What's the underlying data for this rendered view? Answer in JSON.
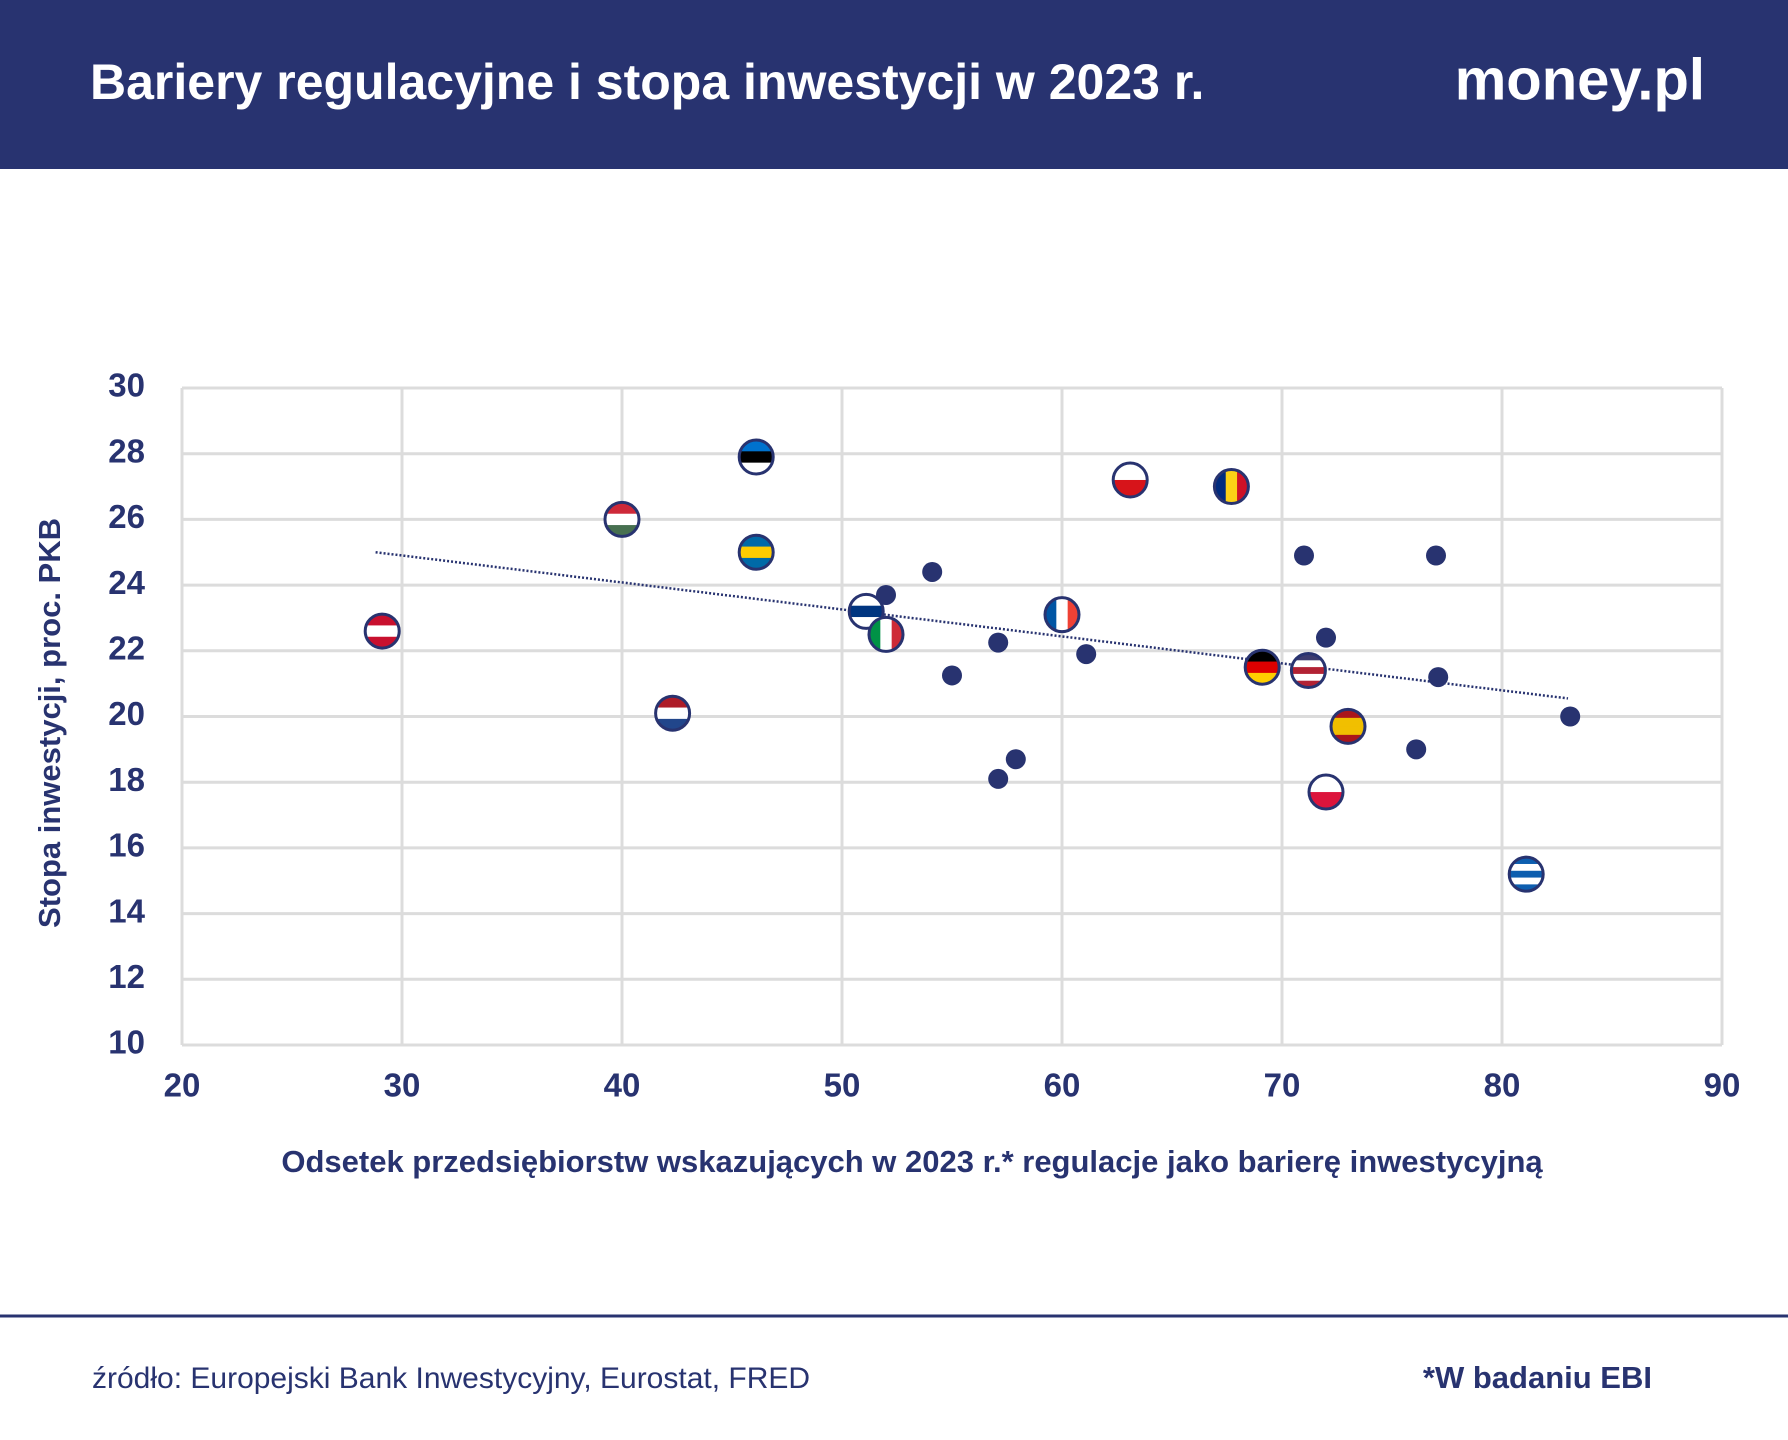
{
  "header": {
    "title": "Bariery regulacyjne i stopa inwestycji w 2023 r.",
    "logo": "money.pl"
  },
  "chart_data": {
    "type": "scatter",
    "x_label": "Odsetek przedsiębiorstw wskazujących w 2023 r.* regulacje jako barierę inwestycyjną",
    "y_label": "Stopa inwestycji, proc. PKB",
    "xlim": [
      20,
      90
    ],
    "xticks": [
      20,
      30,
      40,
      50,
      60,
      70,
      80,
      90
    ],
    "ylim": [
      10,
      30
    ],
    "yticks": [
      10,
      12,
      14,
      16,
      18,
      20,
      22,
      24,
      26,
      28,
      30
    ],
    "grid": true,
    "color": "#283370",
    "x": [
      29.1,
      40.0,
      42.3,
      46.1,
      46.1,
      51.1,
      52.0,
      52.0,
      54.1,
      55.0,
      57.1,
      57.1,
      57.9,
      60.0,
      61.1,
      63.1,
      67.7,
      71.0,
      69.1,
      71.2,
      72.0,
      73.0,
      72.0,
      77.0,
      77.1,
      76.1,
      81.1,
      83.1
    ],
    "y": [
      22.6,
      26.0,
      20.1,
      27.9,
      25.0,
      23.2,
      22.5,
      23.7,
      24.4,
      21.25,
      22.25,
      18.1,
      18.7,
      23.1,
      21.9,
      27.2,
      27.0,
      24.9,
      21.5,
      21.4,
      22.4,
      19.7,
      17.7,
      24.9,
      21.2,
      19.0,
      15.2,
      20.0
    ],
    "marker_colors": [
      {
        "stripes": "h",
        "colors": [
          "#c8102e",
          "#ffffff",
          "#c8102e"
        ]
      },
      {
        "stripes": "h",
        "colors": [
          "#ce2939",
          "#ffffff",
          "#477050"
        ]
      },
      {
        "stripes": "h",
        "colors": [
          "#ae1c28",
          "#ffffff",
          "#21468b"
        ]
      },
      {
        "stripes": "h",
        "colors": [
          "#0072ce",
          "#000000",
          "#ffffff"
        ]
      },
      {
        "stripes": "h",
        "colors": [
          "#006aa7",
          "#fecc00",
          "#006aa7"
        ]
      },
      {
        "stripes": "h",
        "colors": [
          "#ffffff",
          "#003580",
          "#ffffff"
        ]
      },
      {
        "stripes": "v",
        "colors": [
          "#009246",
          "#ffffff",
          "#ce2b37"
        ]
      },
      null,
      null,
      null,
      null,
      null,
      null,
      {
        "stripes": "v",
        "colors": [
          "#0055a4",
          "#ffffff",
          "#ef4135"
        ]
      },
      null,
      {
        "stripes": "h",
        "colors": [
          "#ffffff",
          "#d7141a"
        ]
      },
      {
        "stripes": "v",
        "colors": [
          "#002b7f",
          "#fcd116",
          "#ce1126"
        ]
      },
      null,
      {
        "stripes": "h",
        "colors": [
          "#000000",
          "#dd0000",
          "#ffce00"
        ]
      },
      {
        "stripes": "h",
        "colors": [
          "#3c3b6e",
          "#ffffff",
          "#b22234",
          "#ffffff",
          "#b22234"
        ]
      },
      null,
      {
        "stripes": "h",
        "colors": [
          "#aa151b",
          "#f1bf00",
          "#f1bf00",
          "#aa151b"
        ]
      },
      {
        "stripes": "h",
        "colors": [
          "#ffffff",
          "#dc143c"
        ]
      },
      null,
      null,
      null,
      {
        "stripes": "h",
        "colors": [
          "#0d5eaf",
          "#ffffff",
          "#0d5eaf",
          "#ffffff",
          "#0d5eaf"
        ]
      },
      null
    ],
    "trendline": {
      "x": [
        28.8,
        83.0
      ],
      "y": [
        25.0,
        20.55
      ]
    }
  },
  "footer": {
    "source": "źródło: Europejski Bank Inwestycyjny, Eurostat, FRED",
    "note": "*W badaniu EBI"
  }
}
